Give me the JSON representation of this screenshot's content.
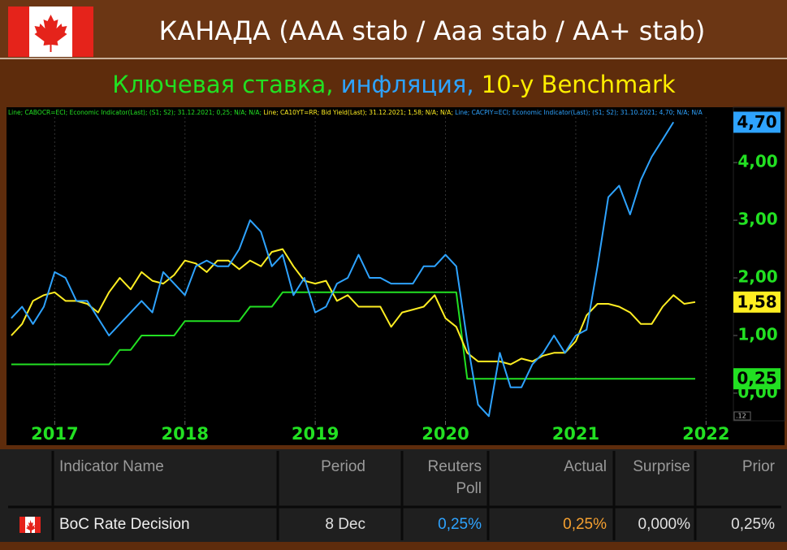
{
  "header": {
    "title": "КАНАДА (AAA stab / Aaa stab / AA+ stab)"
  },
  "subtitle": [
    {
      "text": "Ключевая ставка,",
      "color": "#22e022"
    },
    {
      "text": "инфляция,",
      "color": "#2ea3ff"
    },
    {
      "text": "10-y Benchmark",
      "color": "#ffee00"
    }
  ],
  "chart_data": {
    "type": "line",
    "x": [
      2016.667,
      2016.75,
      2016.833,
      2016.917,
      2017,
      2017.083,
      2017.167,
      2017.25,
      2017.333,
      2017.417,
      2017.5,
      2017.583,
      2017.667,
      2017.75,
      2017.833,
      2017.917,
      2018,
      2018.083,
      2018.167,
      2018.25,
      2018.333,
      2018.417,
      2018.5,
      2018.583,
      2018.667,
      2018.75,
      2018.833,
      2018.917,
      2019,
      2019.083,
      2019.167,
      2019.25,
      2019.333,
      2019.417,
      2019.5,
      2019.583,
      2019.667,
      2019.75,
      2019.833,
      2019.917,
      2020,
      2020.083,
      2020.167,
      2020.25,
      2020.333,
      2020.417,
      2020.5,
      2020.583,
      2020.667,
      2020.75,
      2020.833,
      2020.917,
      2021,
      2021.083,
      2021.167,
      2021.25,
      2021.333,
      2021.417,
      2021.5,
      2021.583,
      2021.667,
      2021.75,
      2021.833,
      2021.917
    ],
    "series": [
      {
        "name": "CABOCR=ECI",
        "legend": "Line; CABOCR=ECI; Economic Indicator(Last); (S1; S2); 31.12.2021; 0,25; N/A; N/A;",
        "color": "#22e022",
        "end_label": "0,25",
        "values": [
          0.5,
          0.5,
          0.5,
          0.5,
          0.5,
          0.5,
          0.5,
          0.5,
          0.5,
          0.5,
          0.75,
          0.75,
          1.0,
          1.0,
          1.0,
          1.0,
          1.25,
          1.25,
          1.25,
          1.25,
          1.25,
          1.25,
          1.5,
          1.5,
          1.5,
          1.75,
          1.75,
          1.75,
          1.75,
          1.75,
          1.75,
          1.75,
          1.75,
          1.75,
          1.75,
          1.75,
          1.75,
          1.75,
          1.75,
          1.75,
          1.75,
          1.75,
          0.25,
          0.25,
          0.25,
          0.25,
          0.25,
          0.25,
          0.25,
          0.25,
          0.25,
          0.25,
          0.25,
          0.25,
          0.25,
          0.25,
          0.25,
          0.25,
          0.25,
          0.25,
          0.25,
          0.25,
          0.25,
          0.25
        ]
      },
      {
        "name": "CA10YT=RR",
        "legend": "Line; CA10YT=RR; Bid Yield(Last); 31.12.2021; 1,58; N/A; N/A;",
        "color": "#ffee22",
        "end_label": "1,58",
        "values": [
          1.0,
          1.2,
          1.6,
          1.7,
          1.75,
          1.6,
          1.6,
          1.55,
          1.4,
          1.75,
          2.0,
          1.8,
          2.1,
          1.95,
          1.9,
          2.05,
          2.3,
          2.25,
          2.1,
          2.3,
          2.3,
          2.15,
          2.3,
          2.2,
          2.45,
          2.5,
          2.2,
          1.95,
          1.9,
          1.95,
          1.6,
          1.7,
          1.5,
          1.5,
          1.5,
          1.15,
          1.4,
          1.45,
          1.5,
          1.7,
          1.3,
          1.15,
          0.7,
          0.55,
          0.55,
          0.55,
          0.5,
          0.6,
          0.55,
          0.65,
          0.7,
          0.7,
          0.9,
          1.35,
          1.55,
          1.55,
          1.5,
          1.4,
          1.2,
          1.2,
          1.5,
          1.7,
          1.55,
          1.58
        ]
      },
      {
        "name": "CACPIY=ECI",
        "legend": "Line; CACPIY=ECI; Economic Indicator(Last); (S1; S2); 31.10.2021; 4,70; N/A; N/A",
        "color": "#2ea3ff",
        "end_label": "4,70",
        "values": [
          1.3,
          1.5,
          1.2,
          1.5,
          2.1,
          2.0,
          1.6,
          1.6,
          1.3,
          1.0,
          1.2,
          1.4,
          1.6,
          1.4,
          2.1,
          1.9,
          1.7,
          2.2,
          2.3,
          2.2,
          2.2,
          2.5,
          3.0,
          2.8,
          2.2,
          2.4,
          1.7,
          2.0,
          1.4,
          1.5,
          1.9,
          2.0,
          2.4,
          2.0,
          2.0,
          1.9,
          1.9,
          1.9,
          2.2,
          2.2,
          2.4,
          2.2,
          0.9,
          -0.2,
          -0.4,
          0.7,
          0.1,
          0.1,
          0.5,
          0.7,
          1.0,
          0.7,
          1.0,
          1.1,
          2.2,
          3.4,
          3.6,
          3.1,
          3.7,
          4.1,
          4.4,
          4.7,
          null,
          null
        ]
      }
    ],
    "xlim": [
      2016.63,
      2022.21
    ],
    "xticks": [
      2017,
      2018,
      2019,
      2020,
      2021,
      2022
    ],
    "ylim": [
      -0.48,
      4.96
    ],
    "yticks": [
      {
        "value": 0,
        "label": "0,00"
      },
      {
        "value": 1,
        "label": "1,00"
      },
      {
        "value": 2,
        "label": "2,00"
      },
      {
        "value": 3,
        "label": "3,00"
      },
      {
        "value": 4,
        "label": "4,00"
      }
    ],
    "grid": true,
    "corner_label": ".12"
  },
  "table": {
    "columns": [
      "Indicator Name",
      "Period",
      "Reuters Poll",
      "Actual",
      "Surprise",
      "Prior"
    ],
    "rows": [
      [
        "BoC Rate Decision",
        "8 Dec",
        "0,25%",
        "0,25%",
        "0,000%",
        "0,25%"
      ]
    ]
  }
}
